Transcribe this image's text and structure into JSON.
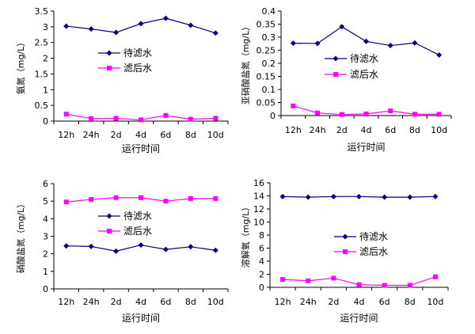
{
  "colors": {
    "series1": "#000080",
    "series2": "#ff00ff"
  },
  "chart_data": [
    {
      "type": "line",
      "x": [
        "12h",
        "24h",
        "2d",
        "4d",
        "6d",
        "8d",
        "10d"
      ],
      "xlabel": "运行时间",
      "ylabel": "氨氮（mg/L）",
      "ylim": [
        0,
        3.5
      ],
      "yticks": [
        "0",
        "0.5",
        "1",
        "1.5",
        "2",
        "2.5",
        "3",
        "3.5"
      ],
      "legend": "middle",
      "series": [
        {
          "name": "待滤水",
          "values": [
            3.02,
            2.93,
            2.82,
            3.1,
            3.27,
            3.05,
            2.8
          ]
        },
        {
          "name": "滤后水",
          "values": [
            0.22,
            0.08,
            0.09,
            0.04,
            0.18,
            0.06,
            0.09
          ]
        }
      ]
    },
    {
      "type": "line",
      "x": [
        "12h",
        "24h",
        "2d",
        "4d",
        "6d",
        "8d",
        "10d"
      ],
      "xlabel": "运行时间",
      "ylabel": "亚硝酸盐氮（mg/L）",
      "ylim": [
        0,
        0.4
      ],
      "yticks": [
        "0",
        "0.05",
        "0.1",
        "0.15",
        "0.2",
        "0.25",
        "0.3",
        "0.35",
        "0.4"
      ],
      "legend": "middle",
      "series": [
        {
          "name": "待滤水",
          "values": [
            0.277,
            0.276,
            0.34,
            0.284,
            0.268,
            0.278,
            0.232
          ]
        },
        {
          "name": "滤后水",
          "values": [
            0.037,
            0.01,
            0.004,
            0.006,
            0.018,
            0.005,
            0.005
          ]
        }
      ]
    },
    {
      "type": "line",
      "x": [
        "12h",
        "24h",
        "2d",
        "4d",
        "6d",
        "8d",
        "10d"
      ],
      "xlabel": "运行时间",
      "ylabel": "硝酸盐氮（mg/L）",
      "ylim": [
        0,
        6
      ],
      "yticks": [
        "0",
        "1",
        "2",
        "3",
        "4",
        "5",
        "6"
      ],
      "legend": "middle",
      "series": [
        {
          "name": "待滤水",
          "values": [
            2.45,
            2.42,
            2.15,
            2.5,
            2.25,
            2.4,
            2.2
          ]
        },
        {
          "name": "滤后水",
          "values": [
            4.95,
            5.1,
            5.2,
            5.2,
            5.0,
            5.15,
            5.15
          ]
        }
      ]
    },
    {
      "type": "line",
      "x": [
        "12h",
        "24h",
        "2d",
        "4d",
        "6d",
        "8d",
        "10d"
      ],
      "xlabel": "运行时间",
      "ylabel": "溶解氧（mg/L）",
      "ylim": [
        0,
        16
      ],
      "yticks": [
        "0",
        "2",
        "4",
        "6",
        "8",
        "10",
        "12",
        "14",
        "16"
      ],
      "legend": "middle",
      "series": [
        {
          "name": "待滤水",
          "values": [
            13.9,
            13.8,
            13.9,
            13.9,
            13.8,
            13.8,
            13.9
          ]
        },
        {
          "name": "滤后水",
          "values": [
            1.2,
            1.0,
            1.4,
            0.4,
            0.3,
            0.3,
            1.6
          ]
        }
      ]
    }
  ]
}
